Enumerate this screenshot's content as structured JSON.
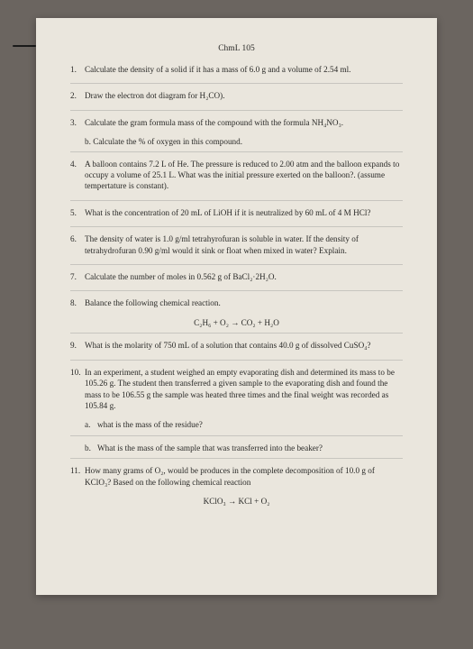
{
  "header": "ChmL 105",
  "q1": {
    "num": "1.",
    "text": "Calculate the density of a solid if it has a mass of 6.0 g and a volume of 2.54 ml."
  },
  "q2": {
    "num": "2.",
    "text": "Draw the electron dot diagram for H₂CO)."
  },
  "q3": {
    "num": "3.",
    "text": "Calculate the gram formula mass of the compound with the formula NH₄NO₃.",
    "b": "b. Calculate the % of oxygen in this compound."
  },
  "q4": {
    "num": "4.",
    "text": "A balloon contains 7.2 L of He. The pressure is reduced to 2.00 atm and the balloon expands to occupy a volume of 25.1 L. What was the initial pressure exerted on the balloon?. (assume tempertature is constant)."
  },
  "q5": {
    "num": "5.",
    "text": "What is the concentration of 20 mL of LiOH if it is neutralized by 60 mL of 4 M HCl?"
  },
  "q6": {
    "num": "6.",
    "text": "The density of water is 1.0 g/ml tetrahyrofuran is soluble in water. If the density of tetrahydrofuran 0.90 g/ml would it sink or float when mixed in water? Explain."
  },
  "q7": {
    "num": "7.",
    "text": "Calculate the number of moles in 0.562 g of BaCl₂·2H₂O."
  },
  "q8": {
    "num": "8.",
    "text": "Balance the following chemical reaction.",
    "eqn": "C₂H₆ + O₂   →   CO₂ + H₂O"
  },
  "q9": {
    "num": "9.",
    "text": "What is the molarity of 750 mL of a solution that contains 40.0 g of dissolved CuSO₄?"
  },
  "q10": {
    "num": "10.",
    "text": "In an experiment, a student weighed an empty evaporating dish and determined its mass to be 105.26 g. The student then transferred a given sample to the evaporating dish and found the mass to be 106.55 g the sample was heated three times and the final weight was recorded as 105.84 g.",
    "a": {
      "label": "a.",
      "text": "what is the mass of the residue?"
    },
    "b": {
      "label": "b.",
      "text": "What is the mass of the sample that was transferred into the beaker?"
    }
  },
  "q11": {
    "num": "11.",
    "text": "How many grams of O₂, would be produces in the complete decomposition of 10.0 g of KClO₃? Based on the following chemical reaction",
    "eqn": "KClO₃   →   KCl  +  O₂"
  }
}
